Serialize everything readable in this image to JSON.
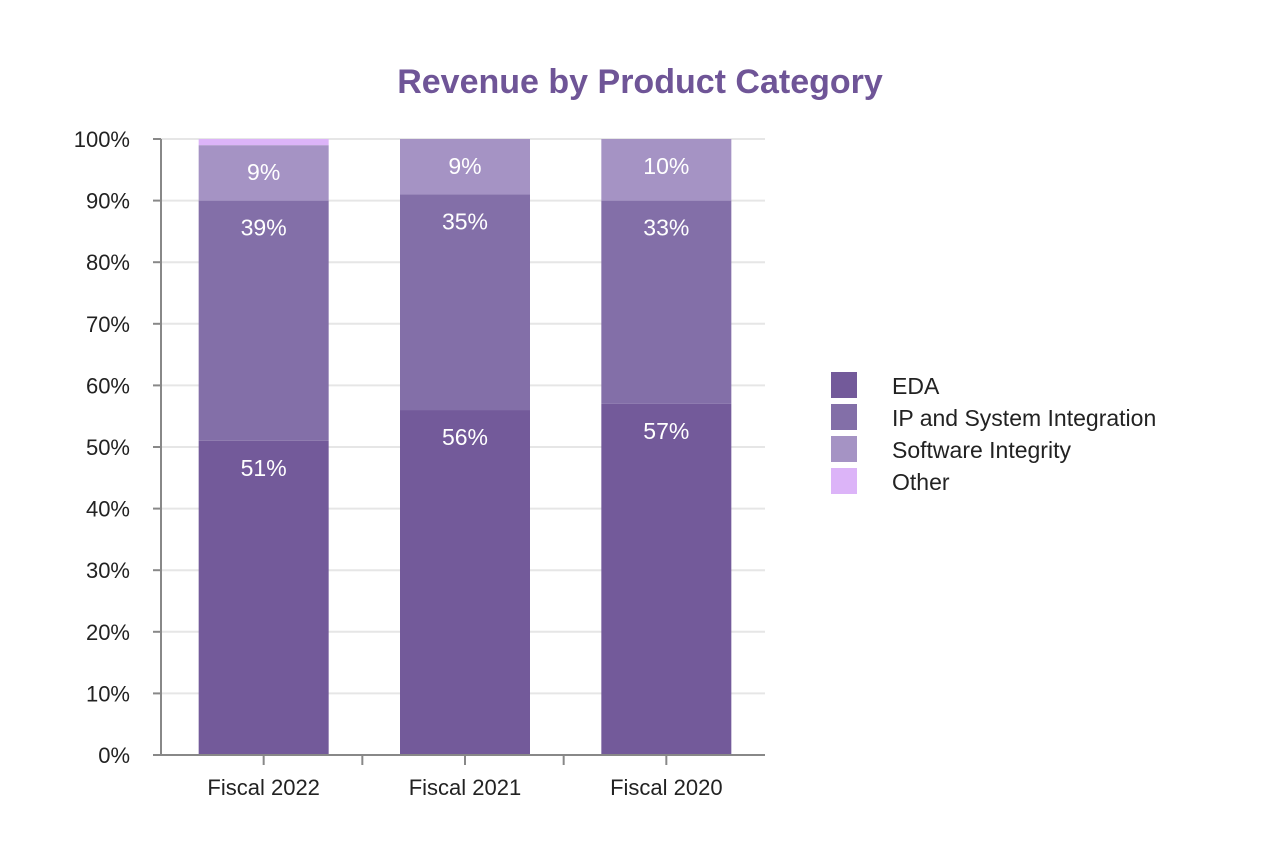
{
  "chart_data": {
    "type": "bar",
    "stacked": true,
    "title": "Revenue by Product Category",
    "xlabel": "",
    "ylabel": "",
    "ylim": [
      0,
      100
    ],
    "yticks": [
      "0%",
      "10%",
      "20%",
      "30%",
      "40%",
      "50%",
      "60%",
      "70%",
      "80%",
      "90%",
      "100%"
    ],
    "grid": true,
    "legend_position": "right",
    "categories": [
      "Fiscal 2022",
      "Fiscal 2021",
      "Fiscal 2020"
    ],
    "series": [
      {
        "name": "EDA",
        "color": "#735a9a",
        "values": [
          51,
          56,
          57
        ],
        "labels": [
          "51%",
          "56%",
          "57%"
        ]
      },
      {
        "name": "IP and System Integration",
        "color": "#836fa8",
        "values": [
          39,
          35,
          33
        ],
        "labels": [
          "39%",
          "35%",
          "33%"
        ]
      },
      {
        "name": "Software Integrity",
        "color": "#a593c4",
        "values": [
          9,
          9,
          10
        ],
        "labels": [
          "9%",
          "9%",
          "10%"
        ]
      },
      {
        "name": "Other",
        "color": "#dcb4f8",
        "values": [
          1,
          0,
          0
        ],
        "labels": [
          "",
          "",
          ""
        ]
      }
    ]
  }
}
